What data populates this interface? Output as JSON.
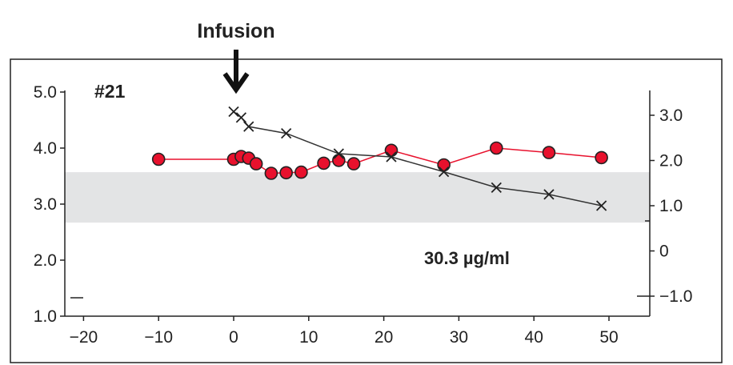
{
  "chart_data": {
    "type": "line",
    "annotation_top": "Infusion",
    "panel_label": "#21",
    "concentration_label": "30.3 µg/ml",
    "x_ticks": [
      "−20",
      "−10",
      "0",
      "10",
      "20",
      "30",
      "40",
      "50"
    ],
    "left_y_ticks": [
      "1.0",
      "2.0",
      "3.0",
      "4.0",
      "5.0"
    ],
    "right_y_ticks": [
      "−1.0",
      "0",
      "1.0",
      "2.0",
      "3.0"
    ],
    "xlim": [
      -22,
      55
    ],
    "left_ylim": [
      1.0,
      5.0
    ],
    "right_ylim": [
      -1.55,
      3.45
    ],
    "reference_band_left_y": [
      2.67,
      3.57
    ],
    "infusion_x": 0,
    "series": [
      {
        "axis": "left",
        "marker": "circle",
        "color": "#e8112d",
        "x": [
          -10,
          0,
          1,
          2,
          3,
          5,
          7,
          9,
          12,
          14,
          16,
          21,
          28,
          35,
          42,
          49
        ],
        "y": [
          3.8,
          3.8,
          3.85,
          3.82,
          3.72,
          3.55,
          3.56,
          3.57,
          3.73,
          3.78,
          3.72,
          3.96,
          3.7,
          4.0,
          3.92,
          3.83
        ]
      },
      {
        "axis": "right",
        "marker": "x",
        "color": "#333333",
        "x": [
          0,
          1,
          2,
          7,
          14,
          21,
          28,
          35,
          42,
          49
        ],
        "y": [
          3.08,
          2.95,
          2.75,
          2.6,
          2.15,
          2.08,
          1.75,
          1.4,
          1.25,
          1.0
        ]
      }
    ]
  }
}
